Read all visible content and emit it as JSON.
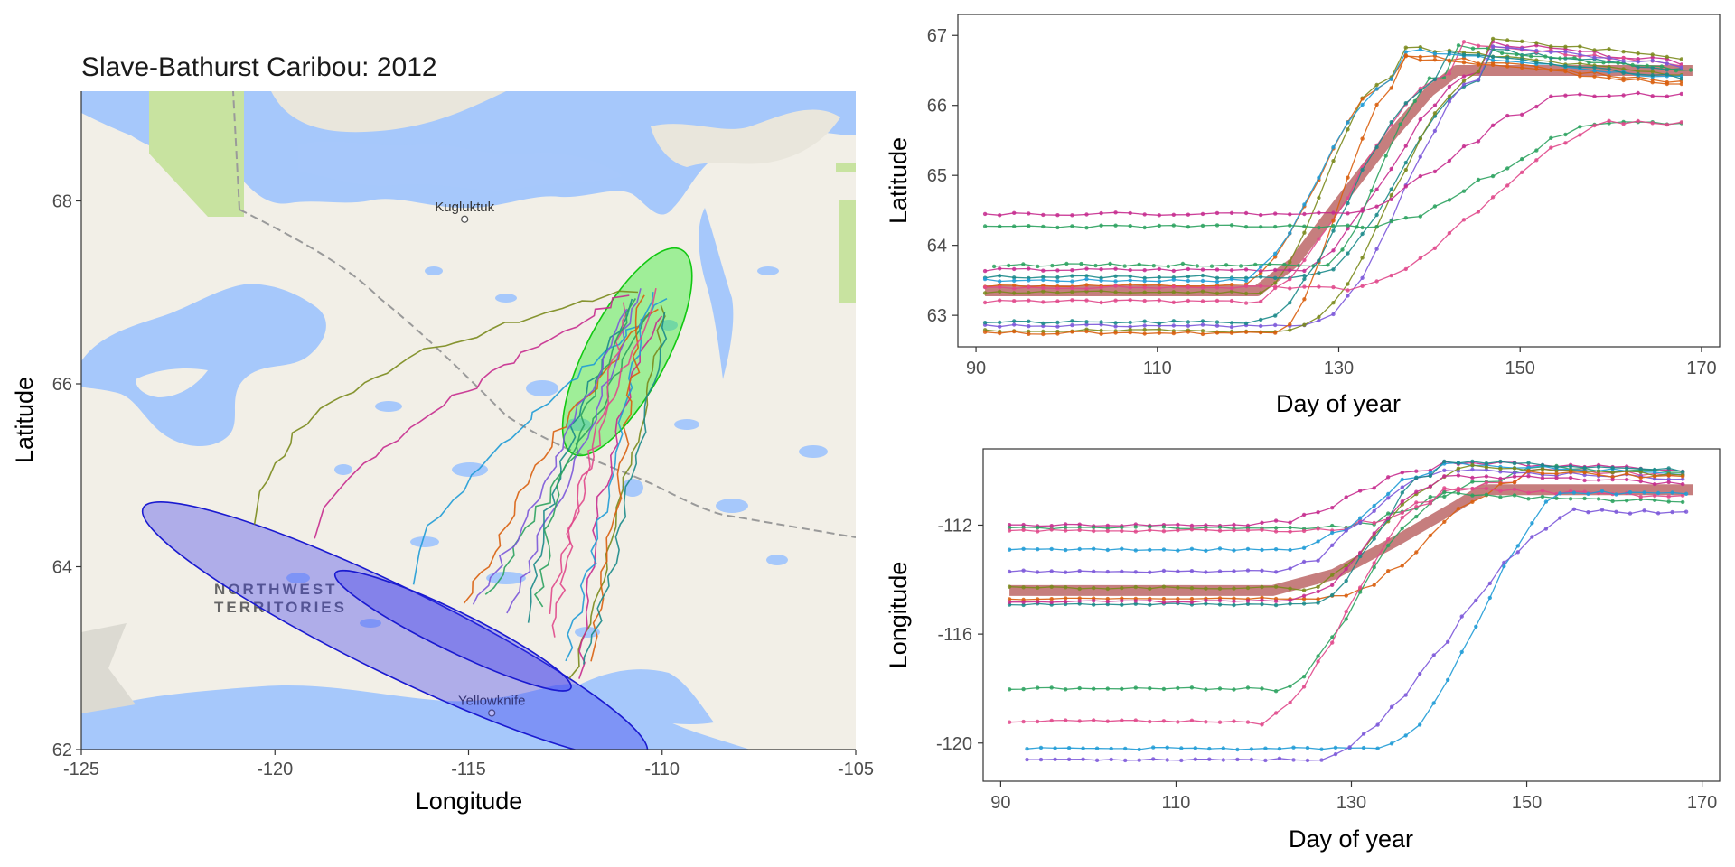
{
  "colors": {
    "water": "#a6c8fb",
    "land": "#f2efe7",
    "park": "#c8e3a0",
    "track_palette": [
      "#7a8a1c",
      "#c62b8e",
      "#1f9bd6",
      "#d95f0e",
      "#2ca25f",
      "#7b57d9",
      "#1b8a8a",
      "#e0488b"
    ],
    "summer_ellipse": "#22ee22",
    "winter_ellipse": "#3333ee",
    "mean_path": "#c07070"
  },
  "map": {
    "title": "Slave-Bathurst Caribou: 2012",
    "xlabel": "Longitude",
    "ylabel": "Latitude",
    "x_ticks": [
      "-125",
      "-120",
      "-115",
      "-110",
      "-105"
    ],
    "y_ticks": [
      "62",
      "64",
      "66",
      "68"
    ],
    "xlim": [
      -125,
      -105
    ],
    "ylim": [
      62,
      69.2
    ],
    "places": [
      {
        "name": "Kugluktuk",
        "lon": -115.1,
        "lat": 67.8
      },
      {
        "name": "Yellowknife",
        "lon": -114.4,
        "lat": 62.4
      }
    ],
    "region_label": [
      "NORTHWEST",
      "TERRITORIES"
    ],
    "summer_range": {
      "center": [
        -110.9,
        66.35
      ],
      "note": "green ellipse"
    },
    "winter_ranges": [
      {
        "label": "outer",
        "center": [
          -116.9,
          63.3
        ]
      },
      {
        "label": "inner",
        "center": [
          -115.4,
          63.3
        ]
      }
    ]
  },
  "chart_data": [
    {
      "type": "line",
      "title": "",
      "xlabel": "Day of year",
      "ylabel": "Latitude",
      "xlim": [
        88,
        172
      ],
      "ylim": [
        62.55,
        67.3
      ],
      "x_ticks": [
        "90",
        "110",
        "130",
        "150",
        "170"
      ],
      "y_ticks": [
        "63",
        "64",
        "65",
        "66",
        "67"
      ],
      "mean_path": {
        "x": [
          91,
          121,
          125,
          130,
          136,
          140,
          143,
          169
        ],
        "y": [
          63.35,
          63.35,
          63.75,
          64.6,
          65.6,
          66.2,
          66.5,
          66.5
        ]
      },
      "series": [
        {
          "start": 63.33,
          "end_day": 169,
          "final": 66.45,
          "variant": 0
        },
        {
          "start": 63.42,
          "end_day": 169,
          "final": 66.35,
          "variant": 1
        },
        {
          "start": 63.55,
          "end_day": 169,
          "final": 66.4,
          "variant": 2
        },
        {
          "start": 63.65,
          "end_day": 169,
          "final": 66.5,
          "variant": 3
        },
        {
          "start": 63.72,
          "end_day": 169,
          "final": 66.45,
          "variant": 4
        },
        {
          "start": 63.2,
          "end_day": 169,
          "final": 66.5,
          "variant": 5
        },
        {
          "start": 63.5,
          "end_day": 169,
          "final": 66.4,
          "variant": 6
        },
        {
          "start": 62.85,
          "end_day": 169,
          "final": 66.45,
          "variant": 7
        },
        {
          "start": 62.78,
          "end_day": 169,
          "final": 66.55,
          "variant": 8
        },
        {
          "start": 62.75,
          "end_day": 169,
          "final": 66.3,
          "variant": 9
        },
        {
          "start": 62.9,
          "end_day": 169,
          "final": 66.35,
          "variant": 10
        },
        {
          "start": 64.45,
          "end_day": 169,
          "final": 66.15,
          "variant": 11
        },
        {
          "start": 64.27,
          "end_day": 169,
          "final": 65.75,
          "variant": 12
        },
        {
          "start": 63.4,
          "end_day": 169,
          "final": 65.75,
          "variant": 13
        }
      ]
    },
    {
      "type": "line",
      "title": "",
      "xlabel": "Day of year",
      "ylabel": "Longitude",
      "xlim": [
        88,
        172
      ],
      "ylim": [
        -121.4,
        -109.2
      ],
      "x_ticks": [
        "90",
        "110",
        "130",
        "150",
        "170"
      ],
      "y_ticks": [
        "-112",
        "-116",
        "-120"
      ],
      "mean_path": {
        "x": [
          91,
          121,
          128,
          135,
          142,
          145,
          169
        ],
        "y": [
          -114.4,
          -114.4,
          -113.8,
          -112.6,
          -111.3,
          -110.7,
          -110.7
        ]
      },
      "series": [
        {
          "start": -112.0,
          "final": -110.0,
          "variant": 0
        },
        {
          "start": -112.1,
          "final": -110.2,
          "variant": 1
        },
        {
          "start": -112.2,
          "final": -110.3,
          "variant": 2
        },
        {
          "start": -112.9,
          "final": -110.1,
          "variant": 3
        },
        {
          "start": -113.7,
          "final": -110.3,
          "variant": 4
        },
        {
          "start": -114.3,
          "final": -110.2,
          "variant": 5
        },
        {
          "start": -114.7,
          "final": -110.4,
          "variant": 6
        },
        {
          "start": -114.9,
          "final": -110.0,
          "variant": 7
        },
        {
          "start": -114.8,
          "final": -110.5,
          "variant": 8
        },
        {
          "start": -118.0,
          "final": -111.2,
          "variant": 9
        },
        {
          "start": -119.2,
          "final": -111.0,
          "variant": 10
        },
        {
          "start": -120.2,
          "final": -110.8,
          "variant": 11
        },
        {
          "start": -120.6,
          "final": -111.5,
          "variant": 12
        }
      ]
    }
  ]
}
